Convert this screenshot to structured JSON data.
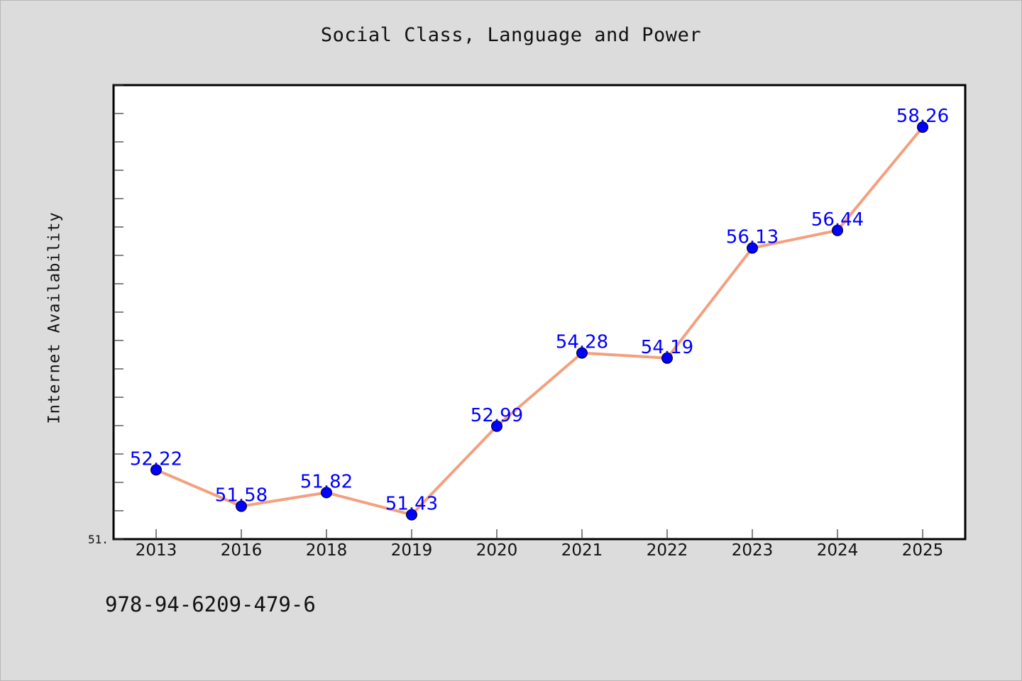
{
  "chart_data": {
    "type": "line",
    "title": "Social Class, Language and Power",
    "xlabel": "",
    "ylabel": "Internet Availability",
    "categories": [
      "2013",
      "2016",
      "2018",
      "2019",
      "2020",
      "2021",
      "2022",
      "2023",
      "2024",
      "2025"
    ],
    "series": [
      {
        "values": [
          52.22,
          51.58,
          51.82,
          51.43,
          52.99,
          54.28,
          54.19,
          56.13,
          56.44,
          58.26
        ]
      }
    ],
    "ylim": [
      51,
      59
    ],
    "yticks_labeled": [
      "51."
    ],
    "grid": false,
    "legend": "none",
    "colors": {
      "line": "#f4a07f",
      "marker": "#0000ff",
      "label": "#0000ff",
      "plot_background": "#ffffff",
      "frame_background": "#dcdcdc"
    }
  },
  "footer": {
    "code": "978-94-6209-479-6"
  }
}
